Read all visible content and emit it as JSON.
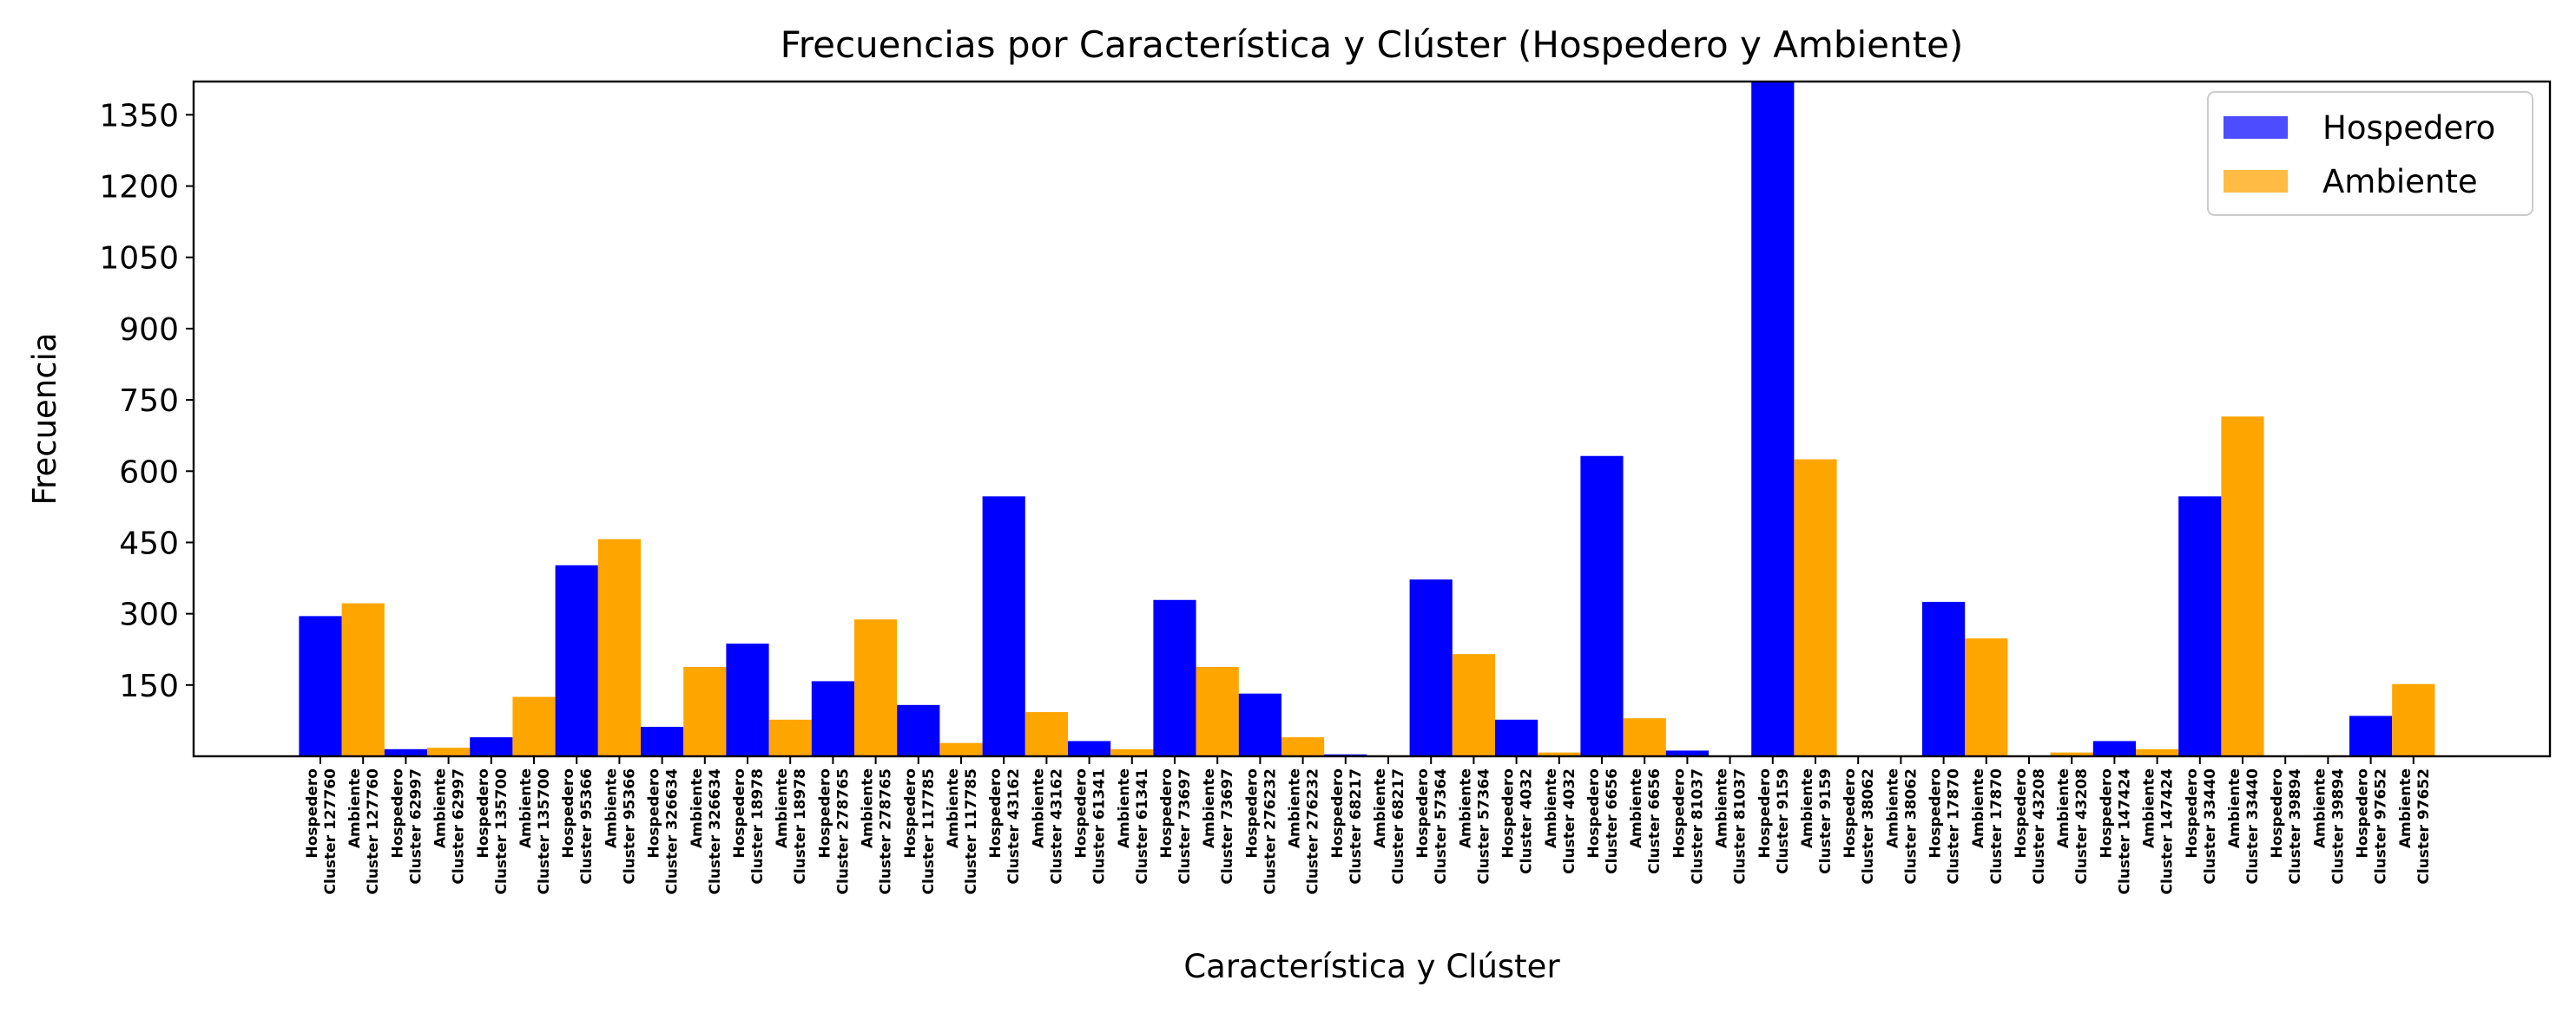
{
  "chart_data": {
    "type": "bar",
    "title": "Frecuencias por Característica y Clúster (Hospedero y Ambiente)",
    "xlabel": "Característica y Clúster",
    "ylabel": "Frecuencia",
    "ylim": [
      0,
      1420
    ],
    "yticks": [
      150,
      300,
      450,
      600,
      750,
      900,
      1050,
      1200,
      1350
    ],
    "grid": false,
    "legend_position": "top-right",
    "series": [
      {
        "name": "Hospedero",
        "color": "#0000ff",
        "legend_color": "#4d4dff"
      },
      {
        "name": "Ambiente",
        "color": "#ffa500",
        "legend_color": "#ffbb44"
      }
    ],
    "bars": [
      {
        "series": "Hospedero",
        "label": [
          "Hospedero",
          "Cluster 127760"
        ],
        "value": 295
      },
      {
        "series": "Ambiente",
        "label": [
          "Ambiente",
          "Cluster 127760"
        ],
        "value": 322
      },
      {
        "series": "Hospedero",
        "label": [
          "Hospedero",
          "Cluster 62997"
        ],
        "value": 15
      },
      {
        "series": "Ambiente",
        "label": [
          "Ambiente",
          "Cluster 62997"
        ],
        "value": 18
      },
      {
        "series": "Hospedero",
        "label": [
          "Hospedero",
          "Cluster 135700"
        ],
        "value": 40
      },
      {
        "series": "Ambiente",
        "label": [
          "Ambiente",
          "Cluster 135700"
        ],
        "value": 125
      },
      {
        "series": "Hospedero",
        "label": [
          "Hospedero",
          "Cluster 95366"
        ],
        "value": 402
      },
      {
        "series": "Ambiente",
        "label": [
          "Ambiente",
          "Cluster 95366"
        ],
        "value": 457
      },
      {
        "series": "Hospedero",
        "label": [
          "Hospedero",
          "Cluster 326634"
        ],
        "value": 62
      },
      {
        "series": "Ambiente",
        "label": [
          "Ambiente",
          "Cluster 326634"
        ],
        "value": 188
      },
      {
        "series": "Hospedero",
        "label": [
          "Hospedero",
          "Cluster 18978"
        ],
        "value": 237
      },
      {
        "series": "Ambiente",
        "label": [
          "Ambiente",
          "Cluster 18978"
        ],
        "value": 77
      },
      {
        "series": "Hospedero",
        "label": [
          "Hospedero",
          "Cluster 278765"
        ],
        "value": 158
      },
      {
        "series": "Ambiente",
        "label": [
          "Ambiente",
          "Cluster 278765"
        ],
        "value": 288
      },
      {
        "series": "Hospedero",
        "label": [
          "Hospedero",
          "Cluster 117785"
        ],
        "value": 108
      },
      {
        "series": "Ambiente",
        "label": [
          "Ambiente",
          "Cluster 117785"
        ],
        "value": 28
      },
      {
        "series": "Hospedero",
        "label": [
          "Hospedero",
          "Cluster 43162"
        ],
        "value": 547
      },
      {
        "series": "Ambiente",
        "label": [
          "Ambiente",
          "Cluster 43162"
        ],
        "value": 93
      },
      {
        "series": "Hospedero",
        "label": [
          "Hospedero",
          "Cluster 61341"
        ],
        "value": 32
      },
      {
        "series": "Ambiente",
        "label": [
          "Ambiente",
          "Cluster 61341"
        ],
        "value": 15
      },
      {
        "series": "Hospedero",
        "label": [
          "Hospedero",
          "Cluster 73697"
        ],
        "value": 329
      },
      {
        "series": "Ambiente",
        "label": [
          "Ambiente",
          "Cluster 73697"
        ],
        "value": 188
      },
      {
        "series": "Hospedero",
        "label": [
          "Hospedero",
          "Cluster 276232"
        ],
        "value": 132
      },
      {
        "series": "Ambiente",
        "label": [
          "Ambiente",
          "Cluster 276232"
        ],
        "value": 40
      },
      {
        "series": "Hospedero",
        "label": [
          "Hospedero",
          "Cluster 68217"
        ],
        "value": 4
      },
      {
        "series": "Ambiente",
        "label": [
          "Ambiente",
          "Cluster 68217"
        ],
        "value": 2
      },
      {
        "series": "Hospedero",
        "label": [
          "Hospedero",
          "Cluster 57364"
        ],
        "value": 372
      },
      {
        "series": "Ambiente",
        "label": [
          "Ambiente",
          "Cluster 57364"
        ],
        "value": 215
      },
      {
        "series": "Hospedero",
        "label": [
          "Hospedero",
          "Cluster 4032"
        ],
        "value": 77
      },
      {
        "series": "Ambiente",
        "label": [
          "Ambiente",
          "Cluster 4032"
        ],
        "value": 8
      },
      {
        "series": "Hospedero",
        "label": [
          "Hospedero",
          "Cluster 6656"
        ],
        "value": 632
      },
      {
        "series": "Ambiente",
        "label": [
          "Ambiente",
          "Cluster 6656"
        ],
        "value": 80
      },
      {
        "series": "Hospedero",
        "label": [
          "Hospedero",
          "Cluster 81037"
        ],
        "value": 12
      },
      {
        "series": "Ambiente",
        "label": [
          "Ambiente",
          "Cluster 81037"
        ],
        "value": 0
      },
      {
        "series": "Hospedero",
        "label": [
          "Hospedero",
          "Cluster 9159"
        ],
        "value": 1420
      },
      {
        "series": "Ambiente",
        "label": [
          "Ambiente",
          "Cluster 9159"
        ],
        "value": 625
      },
      {
        "series": "Hospedero",
        "label": [
          "Hospedero",
          "Cluster 38062"
        ],
        "value": 0
      },
      {
        "series": "Ambiente",
        "label": [
          "Ambiente",
          "Cluster 38062"
        ],
        "value": 2
      },
      {
        "series": "Hospedero",
        "label": [
          "Hospedero",
          "Cluster 17870"
        ],
        "value": 325
      },
      {
        "series": "Ambiente",
        "label": [
          "Ambiente",
          "Cluster 17870"
        ],
        "value": 248
      },
      {
        "series": "Hospedero",
        "label": [
          "Hospedero",
          "Cluster 43208"
        ],
        "value": 0
      },
      {
        "series": "Ambiente",
        "label": [
          "Ambiente",
          "Cluster 43208"
        ],
        "value": 8
      },
      {
        "series": "Hospedero",
        "label": [
          "Hospedero",
          "Cluster 147424"
        ],
        "value": 32
      },
      {
        "series": "Ambiente",
        "label": [
          "Ambiente",
          "Cluster 147424"
        ],
        "value": 15
      },
      {
        "series": "Hospedero",
        "label": [
          "Hospedero",
          "Cluster 33440"
        ],
        "value": 547
      },
      {
        "series": "Ambiente",
        "label": [
          "Ambiente",
          "Cluster 33440"
        ],
        "value": 715
      },
      {
        "series": "Hospedero",
        "label": [
          "Hospedero",
          "Cluster 39894"
        ],
        "value": 0
      },
      {
        "series": "Ambiente",
        "label": [
          "Ambiente",
          "Cluster 39894"
        ],
        "value": 2
      },
      {
        "series": "Hospedero",
        "label": [
          "Hospedero",
          "Cluster 97652"
        ],
        "value": 85
      },
      {
        "series": "Ambiente",
        "label": [
          "Ambiente",
          "Cluster 97652"
        ],
        "value": 152
      }
    ]
  }
}
